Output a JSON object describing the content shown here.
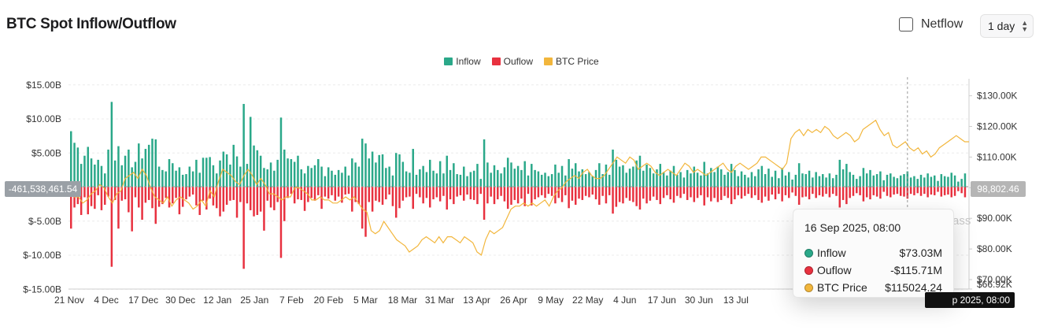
{
  "header": {
    "title": "BTC Spot Inflow/Outflow",
    "netflow_label": "Netflow",
    "netflow_checked": false,
    "period": "1 day",
    "period_icon": "chevron-up-down-icon"
  },
  "legend": [
    {
      "name": "Inflow",
      "color": "#2aa889"
    },
    {
      "name": "Ouflow",
      "color": "#e8313f"
    },
    {
      "name": "BTC Price",
      "color": "#f2b63c"
    }
  ],
  "tooltip": {
    "date": "16 Sep 2025, 08:00",
    "rows": [
      {
        "label": "Inflow",
        "value": "$73.03M",
        "color": "#2aa889"
      },
      {
        "label": "Ouflow",
        "value": "-$115.71M",
        "color": "#e8313f"
      },
      {
        "label": "BTC Price",
        "value": "$115024.24",
        "color": "#f2b63c"
      }
    ]
  },
  "crosshair": {
    "left_value": "-461,538,461.54",
    "right_value": "98,802.46",
    "x_value": "16 Sep 2025, 08:00",
    "x_value_visible": "p 2025, 08:00"
  },
  "watermark": "ass",
  "chart_data": {
    "type": "bar",
    "series_types": {
      "Inflow": "bar",
      "Ouflow": "bar",
      "BTC Price": "line"
    },
    "x_ticks": [
      "21 Nov",
      "4 Dec",
      "17 Dec",
      "30 Dec",
      "12 Jan",
      "25 Jan",
      "7 Feb",
      "20 Feb",
      "5 Mar",
      "18 Mar",
      "31 Mar",
      "13 Apr",
      "26 Apr",
      "9 May",
      "22 May",
      "4 Jun",
      "17 Jun",
      "30 Jun",
      "13 Jul"
    ],
    "y_left": {
      "label": "",
      "ticks": [
        "$15.00B",
        "$10.00B",
        "$5.00B",
        "",
        "$-5.00B",
        "$-10.00B",
        "$-15.00B"
      ],
      "tick_values": [
        15,
        10,
        5,
        0,
        -5,
        -10,
        -15
      ],
      "range": [
        -15,
        15
      ],
      "unit": "B USD"
    },
    "y_right": {
      "label": "",
      "ticks": [
        "$130.00K",
        "$120.00K",
        "$110.00K",
        "$100.00K",
        "$90.00K",
        "$80.00K",
        "$70.00K",
        "$66.92K"
      ],
      "tick_values": [
        130,
        120,
        110,
        100,
        90,
        80,
        70,
        66.92
      ],
      "range": [
        66.92,
        133.5
      ],
      "unit": "K USD"
    },
    "series": [
      {
        "name": "Inflow",
        "values": [
          8.2,
          6.5,
          5.8,
          3.4,
          4.6,
          5.9,
          4.2,
          3.3,
          4.0,
          3.1,
          2.0,
          5.5,
          12.5,
          3.9,
          6.0,
          3.2,
          4.6,
          5.5,
          2.9,
          3.7,
          6.4,
          4.2,
          5.6,
          6.2,
          7.1,
          7.0,
          3.0,
          2.5,
          2.3,
          4.1,
          3.5,
          2.4,
          2.9,
          1.8,
          1.9,
          3.0,
          2.3,
          4.0,
          2.1,
          4.3,
          4.3,
          4.4,
          3.2,
          2.0,
          3.9,
          5.2,
          4.8,
          3.3,
          6.2,
          4.5,
          3.0,
          12.2,
          3.4,
          10.3,
          6.1,
          5.4,
          4.6,
          2.8,
          2.6,
          3.6,
          2.4,
          4.0,
          10.2,
          5.5,
          4.2,
          4.1,
          3.7,
          4.6,
          2.6,
          2.0,
          3.1,
          2.8,
          3.2,
          4.1,
          3.0,
          1.6,
          2.9,
          2.4,
          1.8,
          2.5,
          2.1,
          3.0,
          1.7,
          4.2,
          3.6,
          3.0,
          7.1,
          6.4,
          4.2,
          5.2,
          3.6,
          4.7,
          4.8,
          2.8,
          3.0,
          1.7,
          5.0,
          4.8,
          3.7,
          2.3,
          2.1,
          5.6,
          1.8,
          2.6,
          3.1,
          2.2,
          4.0,
          2.4,
          2.0,
          3.8,
          2.0,
          4.6,
          2.5,
          3.5,
          1.9,
          1.8,
          3.0,
          1.6,
          2.2,
          2.4,
          3.4,
          1.2,
          7.0,
          3.6,
          2.1,
          3.2,
          2.5,
          2.0,
          2.9,
          4.3,
          3.6,
          2.7,
          3.1,
          2.5,
          3.8,
          1.7,
          3.4,
          2.5,
          2.3,
          1.8,
          2.1,
          1.6,
          1.9,
          3.3,
          2.1,
          3.1,
          1.7,
          4.1,
          2.7,
          3.5,
          2.3,
          2.6,
          1.9,
          2.2,
          1.6,
          2.5,
          3.5,
          1.9,
          3.3,
          1.8,
          5.5,
          4.0,
          3.0,
          3.2,
          2.1,
          2.7,
          3.0,
          3.9,
          4.6,
          2.4,
          3.3,
          2.8,
          2.0,
          2.6,
          3.4,
          2.2,
          1.7,
          2.4,
          3.1,
          1.8,
          2.2,
          1.4,
          2.5,
          2.0,
          3.0,
          2.1,
          1.7,
          3.7,
          2.0,
          2.8,
          2.2,
          3.0,
          2.6,
          1.8,
          2.2,
          3.4,
          2.5,
          1.6,
          2.3,
          1.8,
          1.4,
          2.2,
          1.6,
          2.6,
          3.1,
          1.9,
          2.7,
          1.5,
          2.4,
          1.3,
          2.8,
          1.7,
          2.2,
          1.1,
          1.8,
          3.5,
          2.0,
          1.9,
          2.4,
          1.4,
          2.2,
          1.6,
          1.9,
          1.4,
          2.0,
          1.3,
          1.8,
          4.0,
          2.6,
          3.4,
          2.2,
          1.8,
          1.2,
          1.6,
          2.8,
          2.0,
          2.5,
          1.7,
          1.9,
          2.3,
          1.0,
          1.8,
          2.0,
          1.5,
          1.3,
          1.7,
          1.9,
          2.3,
          1.4,
          1.6,
          1.2,
          1.8,
          1.4,
          2.0,
          1.5,
          1.7,
          0.9,
          1.9,
          1.6,
          1.5,
          2.1,
          1.7,
          0.8,
          1.2,
          2.0
        ]
      },
      {
        "name": "Ouflow",
        "values": [
          -6.1,
          -3.0,
          -2.5,
          -4.1,
          -1.5,
          -4.0,
          -2.8,
          -3.2,
          -1.2,
          -3.4,
          -2.6,
          -1.4,
          -11.7,
          -1.9,
          -6.1,
          -2.0,
          -1.8,
          -3.7,
          -6.5,
          -1.5,
          -3.0,
          -4.8,
          -2.3,
          -1.9,
          -3.1,
          -5.4,
          -2.9,
          -2.5,
          -1.6,
          -3.0,
          -2.4,
          -1.6,
          -4.0,
          -2.9,
          -1.8,
          -1.4,
          -1.1,
          -2.7,
          -4.1,
          -2.0,
          -3.3,
          -1.7,
          -2.7,
          -3.1,
          -4.3,
          -3.6,
          -2.6,
          -2.0,
          -1.9,
          -4.5,
          -2.2,
          -12.0,
          -2.4,
          -3.4,
          -4.3,
          -4.1,
          -3.6,
          -6.4,
          -2.0,
          -3.0,
          -3.4,
          -2.2,
          -10.4,
          -5.0,
          -1.6,
          -1.0,
          -2.4,
          -1.8,
          -1.9,
          -3.5,
          -2.2,
          -1.6,
          -2.0,
          -1.2,
          -3.2,
          -1.4,
          -1.7,
          -1.2,
          -2.0,
          -1.4,
          -2.3,
          -1.1,
          -1.0,
          -3.6,
          -2.2,
          -2.5,
          -6.1,
          -7.3,
          -2.2,
          -3.6,
          -2.0,
          -2.2,
          -2.6,
          -1.8,
          -1.1,
          -2.8,
          -4.5,
          -3.1,
          -2.0,
          -1.5,
          -1.4,
          -3.2,
          -1.0,
          -1.5,
          -2.4,
          -1.6,
          -3.0,
          -1.8,
          -1.5,
          -2.1,
          -1.3,
          -3.3,
          -1.8,
          -2.5,
          -1.4,
          -1.2,
          -2.0,
          -1.1,
          -1.8,
          -1.9,
          -2.5,
          -1.0,
          -4.8,
          -2.4,
          -1.4,
          -2.5,
          -1.8,
          -1.3,
          -2.1,
          -3.2,
          -2.6,
          -1.9,
          -2.4,
          -1.7,
          -2.8,
          -1.0,
          -2.7,
          -1.8,
          -1.5,
          -1.2,
          -1.6,
          -1.0,
          -1.3,
          -2.4,
          -1.6,
          -2.2,
          -1.2,
          -3.1,
          -2.0,
          -2.6,
          -1.7,
          -1.9,
          -1.3,
          -1.5,
          -1.1,
          -1.8,
          -2.6,
          -1.3,
          -2.4,
          -1.2,
          -3.9,
          -2.9,
          -2.2,
          -2.4,
          -1.6,
          -2.0,
          -2.2,
          -2.8,
          -3.3,
          -1.7,
          -2.4,
          -2.0,
          -1.4,
          -1.9,
          -2.5,
          -1.6,
          -1.2,
          -1.8,
          -2.3,
          -1.3,
          -1.6,
          -1.0,
          -1.9,
          -1.5,
          -2.2,
          -1.6,
          -1.2,
          -2.7,
          -1.5,
          -2.1,
          -1.6,
          -2.2,
          -1.9,
          -1.3,
          -1.6,
          -2.5,
          -1.8,
          -1.2,
          -1.7,
          -1.3,
          -1.0,
          -1.6,
          -1.2,
          -1.9,
          -2.3,
          -1.4,
          -2.0,
          -1.1,
          -1.8,
          -1.0,
          -2.1,
          -1.2,
          -1.6,
          -0.8,
          -1.3,
          -2.6,
          -1.5,
          -1.4,
          -1.8,
          -1.0,
          -1.6,
          -1.2,
          -1.4,
          -1.0,
          -1.5,
          -1.0,
          -1.3,
          -3.0,
          -1.9,
          -2.5,
          -1.6,
          -1.3,
          -0.9,
          -1.2,
          -2.1,
          -1.5,
          -1.8,
          -1.2,
          -1.4,
          -1.7,
          -0.7,
          -1.3,
          -1.5,
          -1.1,
          -1.0,
          -1.3,
          -1.4,
          -1.7,
          -1.0,
          -1.2,
          -0.9,
          -1.3,
          -1.0,
          -1.5,
          -1.1,
          -1.2,
          -0.7,
          -1.4,
          -1.2,
          -1.1,
          -1.5,
          -1.3,
          -0.6,
          -0.9,
          -1.5
        ]
      },
      {
        "name": "BTC Price",
        "values": [
          98,
          97,
          97,
          95,
          96,
          98,
          99,
          101,
          100,
          97,
          95,
          98,
          99,
          103,
          104,
          105,
          103,
          106,
          104,
          100,
          97,
          96,
          95,
          97,
          94,
          96,
          97,
          96,
          95,
          93,
          94,
          96,
          94,
          99,
          97,
          102,
          106,
          105,
          104,
          102,
          101,
          104,
          106,
          104,
          101,
          103,
          101,
          98,
          98,
          97,
          96,
          97,
          97,
          100,
          100,
          99,
          98,
          96,
          96,
          97,
          96,
          96,
          95,
          95,
          96,
          97,
          96,
          97,
          95,
          93,
          92,
          86,
          85,
          86,
          89,
          87,
          85,
          83,
          82,
          81,
          79,
          80,
          81,
          83,
          84,
          83,
          82,
          84,
          82,
          84,
          84,
          83,
          82,
          84,
          83,
          82,
          79,
          78,
          83,
          86,
          85,
          86,
          87,
          90,
          93,
          94,
          94,
          95,
          94,
          95,
          94,
          95,
          96,
          94,
          97,
          99,
          100,
          102,
          103,
          104,
          103,
          105,
          106,
          104,
          103,
          103,
          104,
          106,
          108,
          110,
          109,
          108,
          110,
          109,
          106,
          107,
          108,
          107,
          105,
          104,
          105,
          106,
          105,
          104,
          106,
          108,
          107,
          105,
          106,
          105,
          104,
          105,
          106,
          107,
          108,
          106,
          105,
          107,
          108,
          107,
          106,
          107,
          108,
          110,
          110,
          109,
          108,
          107,
          106,
          108,
          116,
          118,
          119,
          117,
          119,
          118,
          119,
          118,
          120,
          119,
          117,
          116,
          117,
          118,
          117,
          115,
          116,
          119,
          120,
          121,
          122,
          119,
          117,
          118,
          114,
          113,
          114,
          115,
          113,
          112,
          113,
          111,
          112,
          110,
          111,
          113,
          114,
          115,
          116,
          117,
          116,
          115,
          115
        ]
      }
    ],
    "crosshair_index": 247
  }
}
